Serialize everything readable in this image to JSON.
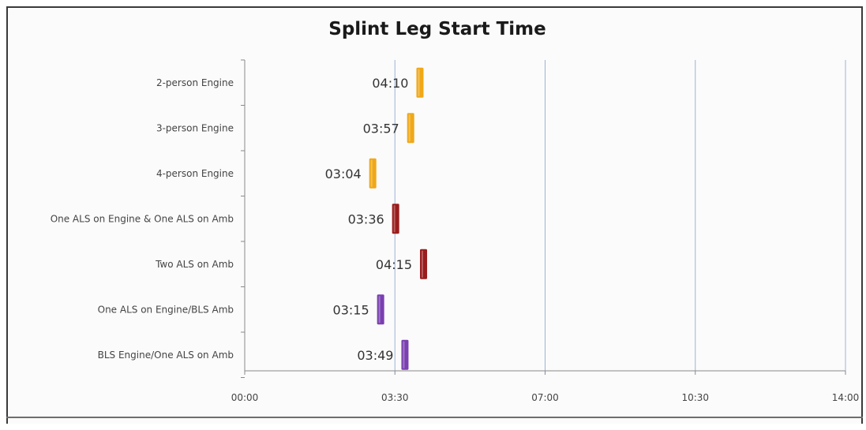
{
  "chart_data": {
    "type": "bar",
    "orientation": "horizontal",
    "title": "Splint Leg Start Time",
    "xlabel": "",
    "ylabel": "",
    "x_unit": "mm:ss",
    "xlim": [
      0,
      840
    ],
    "x_ticks": [
      {
        "value": 0,
        "label": "00:00"
      },
      {
        "value": 210,
        "label": "03:30"
      },
      {
        "value": 420,
        "label": "07:00"
      },
      {
        "value": 630,
        "label": "10:30"
      },
      {
        "value": 840,
        "label": "14:00"
      }
    ],
    "grid": "vertical",
    "legend": "none",
    "categories": [
      "2-person Engine",
      "3-person Engine",
      "4-person Engine",
      "One ALS on Engine & One ALS on Amb",
      "Two ALS on Amb",
      "One ALS on Engine/BLS Amb",
      "BLS Engine/One ALS on Amb"
    ],
    "values": [
      250,
      237,
      184,
      216,
      255,
      195,
      229
    ],
    "value_labels": [
      "04:10",
      "03:57",
      "03:04",
      "03:36",
      "04:15",
      "03:15",
      "03:49"
    ],
    "bar_colors": [
      "#f0a818",
      "#f0a818",
      "#f0a818",
      "#9a1c1c",
      "#9a1c1c",
      "#7a3fb0",
      "#7a3fb0"
    ],
    "colors": {
      "gridline": "#9db3d4",
      "axis": "#8a8a8a",
      "frame": "#3a3a3a"
    }
  }
}
